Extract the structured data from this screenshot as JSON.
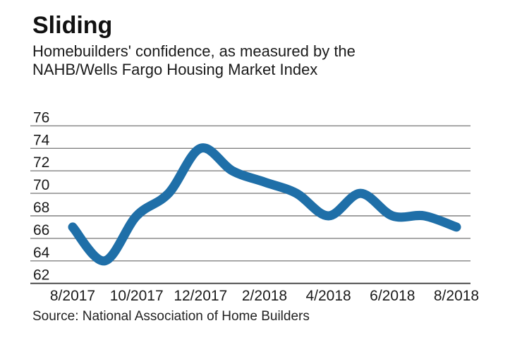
{
  "header": {
    "title": "Sliding",
    "subtitle_line1": "Homebuilders' confidence, as measured by the",
    "subtitle_line2": "NAHB/Wells Fargo Housing Market Index"
  },
  "chart_data": {
    "type": "line",
    "title": "Sliding",
    "subtitle": "Homebuilders' confidence, as measured by the NAHB/Wells Fargo Housing Market Index",
    "series_name": "NAHB/Wells Fargo Housing Market Index",
    "x": [
      "8/2017",
      "9/2017",
      "10/2017",
      "11/2017",
      "12/2017",
      "1/2018",
      "2/2018",
      "3/2018",
      "4/2018",
      "5/2018",
      "6/2018",
      "7/2018",
      "8/2018"
    ],
    "values": [
      67,
      64,
      68,
      70,
      74,
      72,
      71,
      70,
      68,
      70,
      68,
      68,
      67
    ],
    "x_tick_labels": [
      "8/2017",
      "10/2017",
      "12/2017",
      "2/2018",
      "4/2018",
      "6/2018",
      "8/2018"
    ],
    "y_ticks": [
      62,
      64,
      66,
      68,
      70,
      72,
      74,
      76
    ],
    "ylim": [
      62,
      76
    ],
    "grid": true,
    "legend": "none",
    "line_color": "#1f6fa8",
    "grid_color": "#828282",
    "axis_color": "#4f4f4f",
    "label_color": "#1a1a1a"
  },
  "footer": {
    "source": "Source: National Association of Home Builders"
  }
}
